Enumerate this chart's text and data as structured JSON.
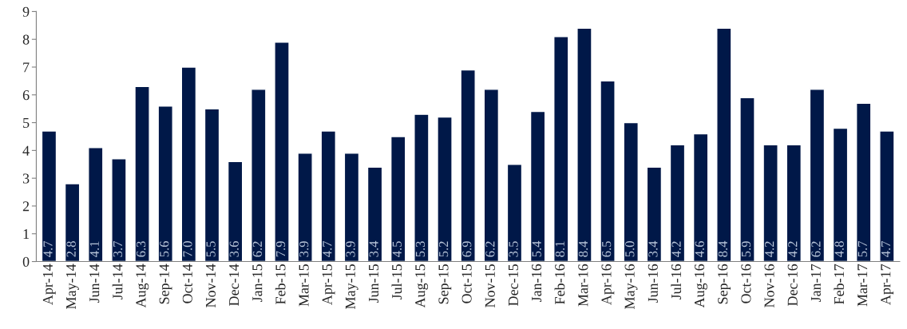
{
  "chart_data": {
    "type": "bar",
    "categories": [
      "Apr-14",
      "May-14",
      "Jun-14",
      "Jul-14",
      "Aug-14",
      "Sep-14",
      "Oct-14",
      "Nov-14",
      "Dec-14",
      "Jan-15",
      "Feb-15",
      "Mar-15",
      "Apr-15",
      "May-15",
      "Jun-15",
      "Jul-15",
      "Aug-15",
      "Sep-15",
      "Oct-15",
      "Nov-15",
      "Dec-15",
      "Jan-16",
      "Feb-16",
      "Mar-16",
      "Apr-16",
      "May-16",
      "Jun-16",
      "Jul-16",
      "Aug-16",
      "Sep-16",
      "Oct-16",
      "Nov-16",
      "Dec-16",
      "Jan-17",
      "Feb-17",
      "Mar-17",
      "Apr-17"
    ],
    "values": [
      4.7,
      2.8,
      4.1,
      3.7,
      6.3,
      5.6,
      7.0,
      5.5,
      3.6,
      6.2,
      7.9,
      3.9,
      4.7,
      3.9,
      3.4,
      4.5,
      5.3,
      5.2,
      6.9,
      6.2,
      3.5,
      5.4,
      8.1,
      8.4,
      6.5,
      5.0,
      3.4,
      4.2,
      4.6,
      8.4,
      5.9,
      4.2,
      4.2,
      6.2,
      4.8,
      5.7,
      4.7
    ],
    "value_labels": [
      "4.7",
      "2.8",
      "4.1",
      "3.7",
      "6.3",
      "5.6",
      "7.0",
      "5.5",
      "3.6",
      "6.2",
      "7.9",
      "3.9",
      "4.7",
      "3.9",
      "3.4",
      "4.5",
      "5.3",
      "5.2",
      "6.9",
      "6.2",
      "3.5",
      "5.4",
      "8.1",
      "8.4",
      "6.5",
      "5.0",
      "3.4",
      "4.2",
      "4.6",
      "8.4",
      "5.9",
      "4.2",
      "4.2",
      "6.2",
      "4.8",
      "5.7",
      "4.7"
    ],
    "color": "#001848",
    "ylim": [
      0,
      9
    ],
    "yticks": [
      0,
      1,
      2,
      3,
      4,
      5,
      6,
      7,
      8,
      9
    ],
    "grid": false,
    "legend": false
  }
}
